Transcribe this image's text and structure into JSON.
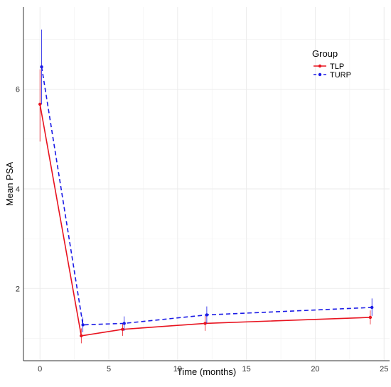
{
  "chart_data": {
    "type": "line",
    "xlabel": "Time (months)",
    "ylabel": "Mean PSA",
    "xlim": [
      -1.2,
      25.4
    ],
    "ylim": [
      0.55,
      7.65
    ],
    "xticks": [
      0,
      5,
      10,
      15,
      20,
      25
    ],
    "yticks": [
      2,
      4,
      6
    ],
    "grid": true,
    "legend": {
      "title": "Group",
      "position": "top-right"
    },
    "series": [
      {
        "name": "TLP",
        "color": "#e8131f",
        "line_style": "solid",
        "x": [
          0,
          3,
          6,
          12,
          24
        ],
        "y": [
          5.7,
          1.05,
          1.18,
          1.3,
          1.42
        ],
        "err_low": [
          4.95,
          0.9,
          1.05,
          1.15,
          1.28
        ],
        "err_high": [
          6.4,
          1.2,
          1.3,
          1.45,
          1.56
        ]
      },
      {
        "name": "TURP",
        "color": "#1a1ae6",
        "line_style": "dashed",
        "x": [
          0.12,
          3.12,
          6.12,
          12.12,
          24.12
        ],
        "y": [
          6.45,
          1.27,
          1.3,
          1.47,
          1.62
        ],
        "err_low": [
          5.7,
          1.12,
          1.15,
          1.3,
          1.45
        ],
        "err_high": [
          7.2,
          1.42,
          1.44,
          1.64,
          1.8
        ]
      }
    ]
  }
}
